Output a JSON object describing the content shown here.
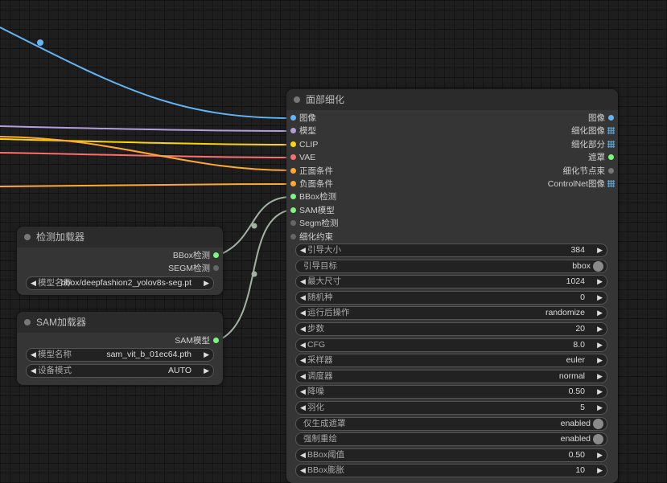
{
  "colors": {
    "image": "#64b5f6",
    "model": "#b39ddb",
    "clip": "#ffd500",
    "vae": "#ff6e6e",
    "conditioning": "#ffa931",
    "bbox": "#7ef77e",
    "sam": "#9ae09a",
    "disabled": "#666666",
    "link_detector": "#a3b3a3"
  },
  "face_detailer": {
    "title": "面部细化",
    "inputs": [
      {
        "label": "图像",
        "color_key": "image"
      },
      {
        "label": "模型",
        "color_key": "model"
      },
      {
        "label": "CLIP",
        "color_key": "clip"
      },
      {
        "label": "VAE",
        "color_key": "vae"
      },
      {
        "label": "正面条件",
        "color_key": "conditioning"
      },
      {
        "label": "负面条件",
        "color_key": "conditioning"
      },
      {
        "label": "BBox检测",
        "color_key": "bbox"
      },
      {
        "label": "SAM模型",
        "color_key": "bbox"
      },
      {
        "label": "Segm检测",
        "color_key": "disabled"
      },
      {
        "label": "细化约束",
        "color_key": "disabled"
      }
    ],
    "outputs": [
      {
        "label": "图像",
        "icon": "dot-icon"
      },
      {
        "label": "细化图像",
        "icon": "grid-icon"
      },
      {
        "label": "细化部分",
        "icon": "grid-icon"
      },
      {
        "label": "遮罩",
        "icon": "dot-icon"
      },
      {
        "label": "细化节点束",
        "icon": "dot-icon"
      },
      {
        "label": "ControlNet图像",
        "icon": "grid-icon"
      }
    ],
    "widgets": [
      {
        "label": "引导大小",
        "value": "384",
        "type": "number"
      },
      {
        "label": "引导目标",
        "value": "bbox",
        "type": "toggle"
      },
      {
        "label": "最大尺寸",
        "value": "1024",
        "type": "number"
      },
      {
        "label": "随机种",
        "value": "0",
        "type": "number"
      },
      {
        "label": "运行后操作",
        "value": "randomize",
        "type": "combo"
      },
      {
        "label": "步数",
        "value": "20",
        "type": "number"
      },
      {
        "label": "CFG",
        "value": "8.0",
        "type": "number"
      },
      {
        "label": "采样器",
        "value": "euler",
        "type": "combo"
      },
      {
        "label": "调度器",
        "value": "normal",
        "type": "combo"
      },
      {
        "label": "降噪",
        "value": "0.50",
        "type": "number"
      },
      {
        "label": "羽化",
        "value": "5",
        "type": "number"
      },
      {
        "label": "仅生成遮罩",
        "value": "enabled",
        "type": "toggle"
      },
      {
        "label": "强制重绘",
        "value": "enabled",
        "type": "toggle"
      },
      {
        "label": "BBox阈值",
        "value": "0.50",
        "type": "number"
      },
      {
        "label": "BBox膨胀",
        "value": "10",
        "type": "number"
      }
    ]
  },
  "detector_loader": {
    "title": "检测加载器",
    "outputs": [
      {
        "label": "BBox检测",
        "color_key": "bbox"
      },
      {
        "label": "SEGM检测",
        "color_key": "disabled"
      }
    ],
    "widgets": [
      {
        "label": "模型名称",
        "value": "bbox/deepfashion2_yolov8s-seg.pt"
      }
    ]
  },
  "sam_loader": {
    "title": "SAM加载器",
    "outputs": [
      {
        "label": "SAM模型",
        "color_key": "bbox"
      }
    ],
    "widgets": [
      {
        "label": "模型名称",
        "value": "sam_vit_b_01ec64.pth"
      },
      {
        "label": "设备模式",
        "value": "AUTO"
      }
    ]
  }
}
